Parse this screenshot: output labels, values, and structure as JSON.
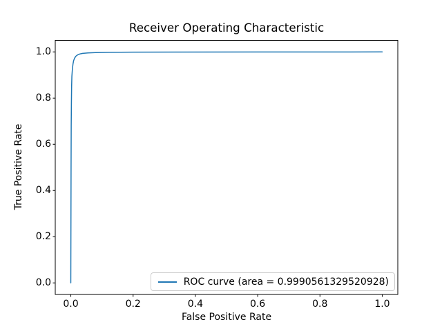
{
  "chart_data": {
    "type": "line",
    "title": "Receiver Operating Characteristic",
    "xlabel": "False Positive Rate",
    "ylabel": "True Positive Rate",
    "xlim": [
      0,
      1
    ],
    "ylim": [
      0,
      1
    ],
    "axis_margin": 0.05,
    "grid": false,
    "background_color": "#ffffff",
    "frame_color": "#000000",
    "x_ticks": [
      0.0,
      0.2,
      0.4,
      0.6,
      0.8,
      1.0
    ],
    "x_tick_labels": [
      "0.0",
      "0.2",
      "0.4",
      "0.6",
      "0.8",
      "1.0"
    ],
    "y_ticks": [
      0.0,
      0.2,
      0.4,
      0.6,
      0.8,
      1.0
    ],
    "y_tick_labels": [
      "0.0",
      "0.2",
      "0.4",
      "0.6",
      "0.8",
      "1.0"
    ],
    "series": [
      {
        "name": "ROC curve (area = 0.9990561329520928)",
        "color": "#1f77b4",
        "auc": 0.9990561329520928,
        "points": [
          [
            0.0,
            0.0
          ],
          [
            0.0007,
            0.5
          ],
          [
            0.0012,
            0.68
          ],
          [
            0.0018,
            0.78
          ],
          [
            0.0025,
            0.85
          ],
          [
            0.0035,
            0.895
          ],
          [
            0.005,
            0.925
          ],
          [
            0.007,
            0.948
          ],
          [
            0.009,
            0.962
          ],
          [
            0.012,
            0.973
          ],
          [
            0.016,
            0.981
          ],
          [
            0.021,
            0.9865
          ],
          [
            0.028,
            0.9905
          ],
          [
            0.038,
            0.9935
          ],
          [
            0.055,
            0.9958
          ],
          [
            0.08,
            0.9972
          ],
          [
            0.12,
            0.9982
          ],
          [
            0.2,
            0.999
          ],
          [
            0.35,
            0.9994
          ],
          [
            0.6,
            0.9997
          ],
          [
            1.0,
            1.0
          ]
        ]
      }
    ],
    "legend": {
      "position": "lower right",
      "label": "ROC curve (area = 0.9990561329520928)"
    }
  }
}
